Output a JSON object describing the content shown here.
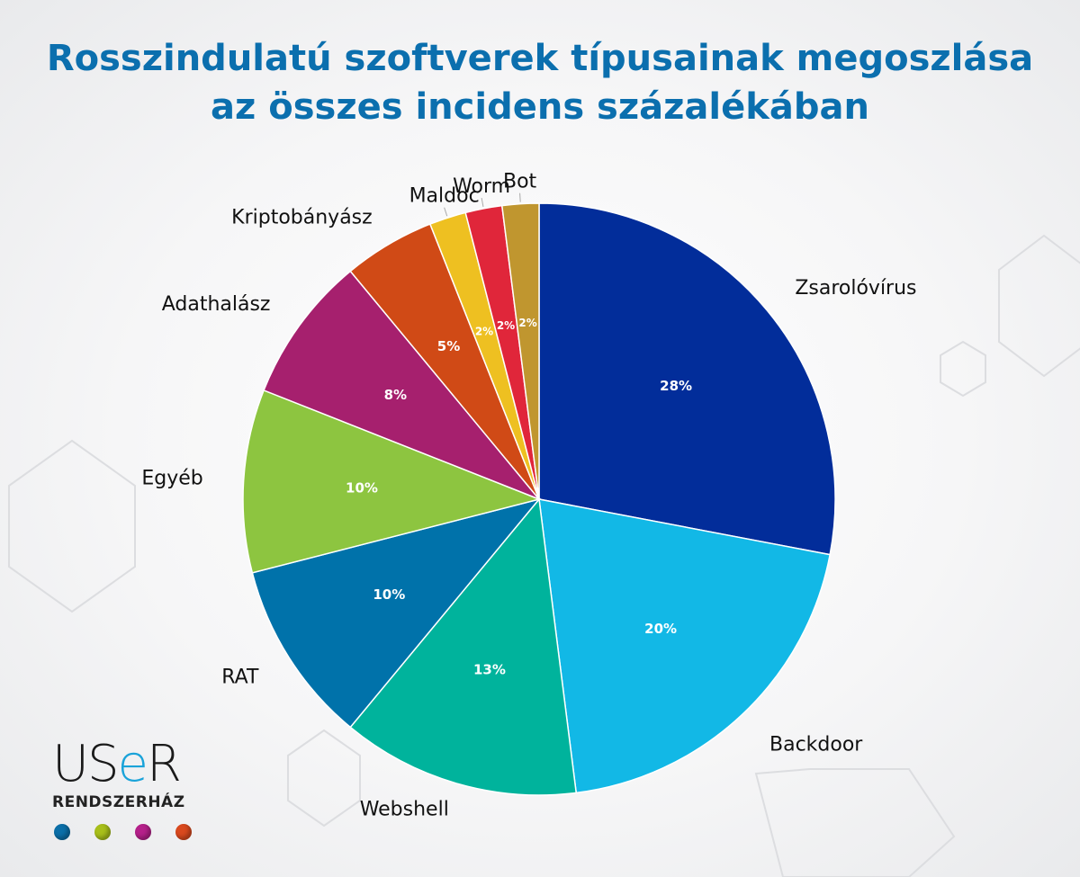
{
  "title_lines": [
    "Rosszindulatú szoftverek típusainak megoszlása",
    "az összes incidens százalékában"
  ],
  "chart_data": {
    "type": "pie",
    "title": "Rosszindulatú szoftverek típusainak megoszlása az összes incidens százalékában",
    "start": "top",
    "direction": "clockwise",
    "unit": "%",
    "slices": [
      {
        "label": "Zsarolóvírus",
        "value": 28,
        "value_label": "28%",
        "color": "#022d9a"
      },
      {
        "label": "Backdoor",
        "value": 20,
        "value_label": "20%",
        "color": "#12b8e6"
      },
      {
        "label": "Webshell",
        "value": 13,
        "value_label": "13%",
        "color": "#00b39c"
      },
      {
        "label": "RAT",
        "value": 10,
        "value_label": "10%",
        "color": "#0072aa"
      },
      {
        "label": "Egyéb",
        "value": 10,
        "value_label": "10%",
        "color": "#8dc540"
      },
      {
        "label": "Adathalász",
        "value": 8,
        "value_label": "8%",
        "color": "#a6206e"
      },
      {
        "label": "Kriptobányász",
        "value": 5,
        "value_label": "5%",
        "color": "#d04a16"
      },
      {
        "label": "Maldoc",
        "value": 2,
        "value_label": "2%",
        "color": "#eec021"
      },
      {
        "label": "Worm",
        "value": 2,
        "value_label": "2%",
        "color": "#e0263a"
      },
      {
        "label": "Bot",
        "value": 2,
        "value_label": "2%",
        "color": "#c0962f"
      }
    ]
  },
  "logo": {
    "word_a": "US",
    "word_e": "e",
    "word_b": "R",
    "sub": "RENDSZERHÁZ",
    "dot_colors": [
      "#0b6fa8",
      "#a8bf1a",
      "#b5208a",
      "#d9491e"
    ]
  }
}
